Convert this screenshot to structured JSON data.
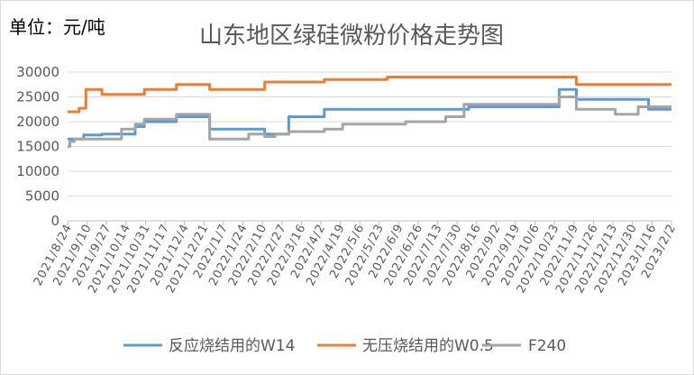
{
  "chart_data": {
    "type": "line",
    "title": "山东地区绿硅微粉价格走势图",
    "unit_label": "单位：元/吨",
    "ylim": [
      0,
      30000
    ],
    "yticks": [
      0,
      5000,
      10000,
      15000,
      20000,
      25000,
      30000
    ],
    "xlim": [
      "2021/8/24",
      "2023/2/2"
    ],
    "xticks": [
      "2021/8/24",
      "2021/9/10",
      "2021/9/27",
      "2021/10/14",
      "2021/10/31",
      "2021/11/17",
      "2021/12/4",
      "2021/12/21",
      "2022/1/7",
      "2022/1/24",
      "2022/2/10",
      "2022/2/27",
      "2022/3/16",
      "2022/4/2",
      "2022/4/19",
      "2022/5/6",
      "2022/5/23",
      "2022/6/9",
      "2022/6/26",
      "2022/7/13",
      "2022/7/30",
      "2022/8/16",
      "2022/9/2",
      "2022/9/19",
      "2022/10/6",
      "2022/10/23",
      "2022/11/9",
      "2022/11/26",
      "2022/12/13",
      "2022/12/30",
      "2023/1/16",
      "2023/2/2"
    ],
    "grid": true,
    "legend_position": "bottom",
    "series": [
      {
        "name": "反应烧结用的W14",
        "color": "#5b9bd5",
        "points": [
          [
            "2021/8/24",
            16500
          ],
          [
            "2021/9/7",
            17300
          ],
          [
            "2021/9/23",
            17500
          ],
          [
            "2021/10/22",
            19000
          ],
          [
            "2021/10/30",
            20000
          ],
          [
            "2021/11/27",
            21000
          ],
          [
            "2021/12/26",
            18500
          ],
          [
            "2022/2/12",
            17500
          ],
          [
            "2022/3/5",
            21000
          ],
          [
            "2022/4/5",
            22500
          ],
          [
            "2022/8/9",
            23000
          ],
          [
            "2022/10/27",
            26500
          ],
          [
            "2022/11/11",
            24500
          ],
          [
            "2023/1/13",
            22500
          ]
        ]
      },
      {
        "name": "无压烧结用的W0.5",
        "color": "#ed7d31",
        "points": [
          [
            "2021/8/24",
            22000
          ],
          [
            "2021/9/3",
            22700
          ],
          [
            "2021/9/9",
            26500
          ],
          [
            "2021/9/23",
            25500
          ],
          [
            "2021/10/30",
            26500
          ],
          [
            "2021/11/27",
            27500
          ],
          [
            "2021/12/26",
            26500
          ],
          [
            "2022/2/12",
            28000
          ],
          [
            "2022/4/5",
            28500
          ],
          [
            "2022/5/30",
            29000
          ],
          [
            "2022/11/11",
            27500
          ]
        ]
      },
      {
        "name": "F240",
        "color": "#a5a5a5",
        "points": [
          [
            "2021/8/24",
            15000
          ],
          [
            "2021/8/26",
            16000
          ],
          [
            "2021/8/30",
            16500
          ],
          [
            "2021/10/10",
            18500
          ],
          [
            "2021/10/22",
            19500
          ],
          [
            "2021/10/30",
            20500
          ],
          [
            "2021/11/27",
            21500
          ],
          [
            "2021/12/26",
            16500
          ],
          [
            "2022/1/29",
            17500
          ],
          [
            "2022/2/12",
            17000
          ],
          [
            "2022/2/21",
            17500
          ],
          [
            "2022/3/5",
            18000
          ],
          [
            "2022/4/5",
            18500
          ],
          [
            "2022/4/21",
            19500
          ],
          [
            "2022/6/15",
            20000
          ],
          [
            "2022/7/20",
            21000
          ],
          [
            "2022/8/5",
            23500
          ],
          [
            "2022/10/27",
            25000
          ],
          [
            "2022/11/11",
            22500
          ],
          [
            "2022/12/15",
            21500
          ],
          [
            "2023/1/4",
            23000
          ]
        ]
      }
    ]
  }
}
